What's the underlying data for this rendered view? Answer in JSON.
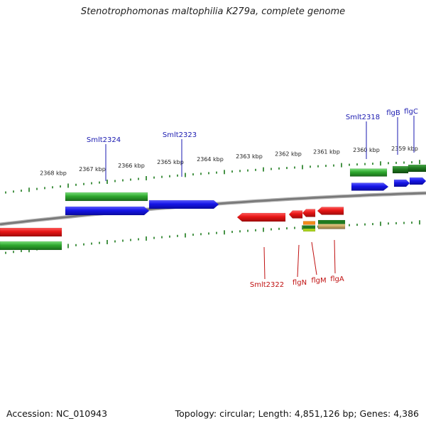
{
  "title": "Stenotrophomonas maltophilia K279a, complete genome",
  "footer": {
    "accession": "Accession: NC_010943",
    "summary": "Topology: circular; Length: 4,851,126 bp; Genes: 4,386"
  },
  "colors": {
    "backbone": "#777777",
    "tick": "#1a7a1a",
    "cds_forward": "#1515e6",
    "cds_reverse": "#e61515",
    "gene_green": "#2ea82e",
    "gene_darkgreen": "#1f7a1f",
    "label_forward": "#1a1ab0",
    "label_reverse": "#c01010",
    "orange": "#f08a1a",
    "yellowgreen": "#a8d020",
    "tan": "#c8a860"
  },
  "scale_labels": [
    "2368 kbp",
    "2367 kbp",
    "2366 kbp",
    "2365 kbp",
    "2364 kbp",
    "2363 kbp",
    "2362 kbp",
    "2361 kbp",
    "2360 kbp",
    "2359 kbp"
  ],
  "gene_labels": {
    "forward": [
      "Smlt2324",
      "Smlt2323",
      "Smlt2318",
      "flgB",
      "flgC"
    ],
    "reverse": [
      "Smlt2322",
      "flgN",
      "flgM",
      "flgA"
    ]
  }
}
